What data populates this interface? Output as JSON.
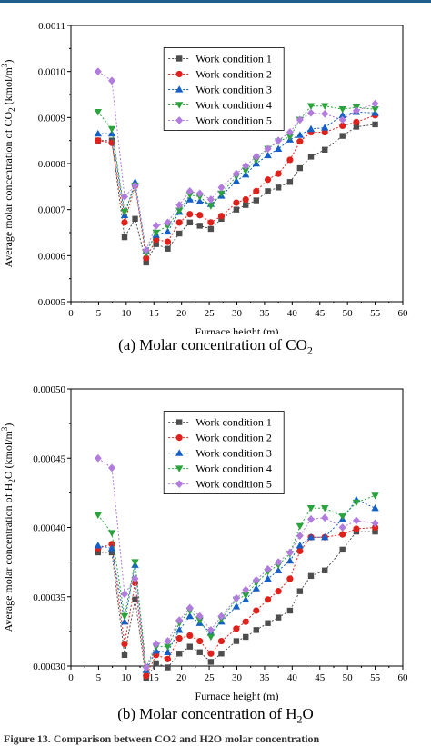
{
  "figure_note": "Figure 13. Comparison between CO2 and H2O molar concentration",
  "colors": {
    "s1": "#4d4d4d",
    "s2": "#e0201b",
    "s3": "#1560c8",
    "s4": "#2aa33c",
    "s5": "#b27bde",
    "header": "#1f5f8b"
  },
  "chart_data": [
    {
      "type": "line",
      "caption": "(a) Molar concentration of CO",
      "caption_sub": "2",
      "ylabel": "Average molar concentration of CO",
      "ylabel_sub": "2",
      "ylabel_unit": " (kmol/m",
      "ylabel_sup": "3",
      "ylabel_end": ")",
      "xlabel": "Furnace height (m)",
      "xlim": [
        0,
        60
      ],
      "ylim": [
        0.0005,
        0.0011
      ],
      "xticks": [
        "0",
        "5",
        "10",
        "15",
        "20",
        "25",
        "30",
        "35",
        "40",
        "45",
        "50",
        "55",
        "60"
      ],
      "yticks": [
        "0.0005",
        "0.0006",
        "0.0007",
        "0.0008",
        "0.0009",
        "0.0010",
        "0.0011"
      ],
      "x": [
        4.9,
        7.4,
        9.7,
        11.6,
        13.6,
        15.4,
        17.5,
        19.6,
        21.5,
        23.3,
        25.3,
        27.2,
        29.9,
        31.6,
        33.5,
        35.6,
        37.5,
        39.6,
        41.4,
        43.4,
        45.9,
        49.1,
        51.6,
        55.0
      ],
      "series": [
        {
          "name": "Work condition 1",
          "marker": "square",
          "values": [
            0.00085,
            0.00085,
            0.00064,
            0.00068,
            0.000585,
            0.000625,
            0.000615,
            0.000648,
            0.000672,
            0.000665,
            0.000658,
            0.00068,
            0.0007,
            0.00071,
            0.00072,
            0.00074,
            0.000748,
            0.00076,
            0.00079,
            0.000815,
            0.00083,
            0.00086,
            0.00088,
            0.000885
          ]
        },
        {
          "name": "Work condition 2",
          "marker": "circle",
          "values": [
            0.00085,
            0.000845,
            0.000672,
            0.000752,
            0.000595,
            0.000635,
            0.00063,
            0.000672,
            0.00069,
            0.000688,
            0.000672,
            0.000686,
            0.000715,
            0.000722,
            0.00074,
            0.000765,
            0.000778,
            0.000808,
            0.000848,
            0.000868,
            0.000868,
            0.000882,
            0.00089,
            0.000905
          ]
        },
        {
          "name": "Work condition 3",
          "marker": "triangle-up",
          "values": [
            0.000865,
            0.000865,
            0.000688,
            0.00076,
            0.00061,
            0.000645,
            0.000652,
            0.000695,
            0.000722,
            0.000718,
            0.000712,
            0.00073,
            0.000762,
            0.000776,
            0.0008,
            0.000818,
            0.000832,
            0.000852,
            0.000862,
            0.000875,
            0.000878,
            0.000905,
            0.000912,
            0.00091
          ]
        },
        {
          "name": "Work condition 4",
          "marker": "triangle-down",
          "values": [
            0.000912,
            0.000875,
            0.000695,
            0.000752,
            0.000605,
            0.00065,
            0.000665,
            0.000698,
            0.000732,
            0.000728,
            0.000708,
            0.000735,
            0.000772,
            0.000785,
            0.000808,
            0.000832,
            0.000848,
            0.000858,
            0.000895,
            0.000925,
            0.000925,
            0.000918,
            0.000922,
            0.000918
          ]
        },
        {
          "name": "Work condition 5",
          "marker": "diamond",
          "values": [
            0.001,
            0.00098,
            0.000728,
            0.000752,
            0.000612,
            0.000665,
            0.000672,
            0.00071,
            0.00074,
            0.000735,
            0.000722,
            0.000748,
            0.000778,
            0.000795,
            0.000815,
            0.000832,
            0.00085,
            0.000868,
            0.000895,
            0.00091,
            0.000908,
            0.000895,
            0.000915,
            0.00093
          ]
        }
      ]
    },
    {
      "type": "line",
      "caption": "(b) Molar concentration of H",
      "caption_sub": "2",
      "caption_end": "O",
      "ylabel": "Average molar concentration of H",
      "ylabel_sub": "2",
      "ylabel_unit": "O (kmol/m",
      "ylabel_sup": "3",
      "ylabel_end": ")",
      "xlabel": "Furnace height (m)",
      "xlim": [
        0,
        60
      ],
      "ylim": [
        0.0003,
        0.0005
      ],
      "xticks": [
        "0",
        "5",
        "10",
        "15",
        "20",
        "25",
        "30",
        "35",
        "40",
        "45",
        "50",
        "55",
        "60"
      ],
      "yticks": [
        "0.00030",
        "0.00035",
        "0.00040",
        "0.00045",
        "0.00050"
      ],
      "x": [
        4.9,
        7.4,
        9.7,
        11.6,
        13.6,
        15.4,
        17.5,
        19.6,
        21.5,
        23.3,
        25.3,
        27.2,
        29.9,
        31.6,
        33.5,
        35.6,
        37.5,
        39.6,
        41.4,
        43.4,
        45.9,
        49.1,
        51.6,
        55.0
      ],
      "series": [
        {
          "name": "Work condition 1",
          "marker": "square",
          "values": [
            0.000382,
            0.000382,
            0.000308,
            0.000348,
            0.000291,
            0.000302,
            0.000299,
            0.000309,
            0.000314,
            0.00031,
            0.000303,
            0.000309,
            0.000318,
            0.000321,
            0.000326,
            0.000331,
            0.000335,
            0.00034,
            0.000354,
            0.000365,
            0.000369,
            0.000384,
            0.000397,
            0.000397
          ]
        },
        {
          "name": "Work condition 2",
          "marker": "circle",
          "values": [
            0.000385,
            0.000388,
            0.000316,
            0.00036,
            0.000293,
            0.000308,
            0.000305,
            0.00032,
            0.000322,
            0.000318,
            0.000309,
            0.000318,
            0.000327,
            0.000332,
            0.00034,
            0.000348,
            0.000354,
            0.000363,
            0.000383,
            0.000393,
            0.000393,
            0.000395,
            0.000399,
            0.0004
          ]
        },
        {
          "name": "Work condition 3",
          "marker": "triangle-up",
          "values": [
            0.000387,
            0.000385,
            0.000332,
            0.000373,
            0.000297,
            0.000311,
            0.00031,
            0.000326,
            0.000336,
            0.000331,
            0.000324,
            0.000332,
            0.000343,
            0.000348,
            0.000356,
            0.000363,
            0.000369,
            0.000376,
            0.000387,
            0.000393,
            0.000393,
            0.000406,
            0.00042,
            0.000414
          ]
        },
        {
          "name": "Work condition 4",
          "marker": "triangle-down",
          "values": [
            0.000409,
            0.000396,
            0.000336,
            0.000375,
            0.000298,
            0.000314,
            0.000314,
            0.000331,
            0.00034,
            0.000333,
            0.000321,
            0.000334,
            0.000348,
            0.000351,
            0.00036,
            0.000368,
            0.000373,
            0.000381,
            0.000401,
            0.000414,
            0.000414,
            0.000408,
            0.000418,
            0.000423
          ]
        },
        {
          "name": "Work condition 5",
          "marker": "diamond",
          "values": [
            0.00045,
            0.000443,
            0.000352,
            0.000363,
            0.000299,
            0.000316,
            0.000318,
            0.000333,
            0.000342,
            0.000336,
            0.000326,
            0.000336,
            0.000349,
            0.000355,
            0.000362,
            0.00037,
            0.000375,
            0.000382,
            0.000394,
            0.000406,
            0.000407,
            0.0004,
            0.000405,
            0.000403
          ]
        }
      ]
    }
  ]
}
